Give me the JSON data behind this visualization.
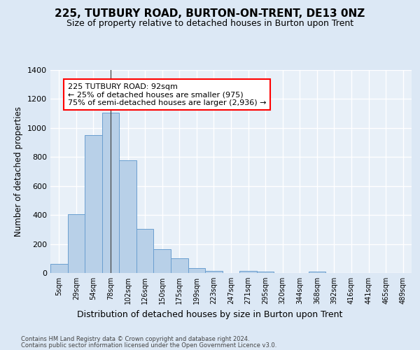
{
  "title": "225, TUTBURY ROAD, BURTON-ON-TRENT, DE13 0NZ",
  "subtitle": "Size of property relative to detached houses in Burton upon Trent",
  "xlabel": "Distribution of detached houses by size in Burton upon Trent",
  "ylabel": "Number of detached properties",
  "footer1": "Contains HM Land Registry data © Crown copyright and database right 2024.",
  "footer2": "Contains public sector information licensed under the Open Government Licence v3.0.",
  "categories": [
    "5sqm",
    "29sqm",
    "54sqm",
    "78sqm",
    "102sqm",
    "126sqm",
    "150sqm",
    "175sqm",
    "199sqm",
    "223sqm",
    "247sqm",
    "271sqm",
    "295sqm",
    "320sqm",
    "344sqm",
    "368sqm",
    "392sqm",
    "416sqm",
    "441sqm",
    "465sqm",
    "489sqm"
  ],
  "values": [
    65,
    405,
    950,
    1105,
    775,
    305,
    165,
    100,
    35,
    15,
    0,
    15,
    10,
    0,
    0,
    10,
    0,
    0,
    0,
    0,
    0
  ],
  "bar_color": "#b8d0e8",
  "bar_edge_color": "#6a9fd0",
  "annotation_line1": "225 TUTBURY ROAD: 92sqm",
  "annotation_line2": "← 25% of detached houses are smaller (975)",
  "annotation_line3": "75% of semi-detached houses are larger (2,936) →",
  "vline_position": 3.5,
  "ylim": [
    0,
    1400
  ],
  "yticks": [
    0,
    200,
    400,
    600,
    800,
    1000,
    1200,
    1400
  ],
  "bg_color": "#dce8f5",
  "plot_bg_color": "#e8f0f8",
  "grid_color": "#ffffff",
  "title_fontsize": 11,
  "subtitle_fontsize": 9,
  "annotation_fontsize": 8,
  "tick_fontsize": 7,
  "ylabel_fontsize": 8.5,
  "xlabel_fontsize": 9,
  "footer_fontsize": 6
}
